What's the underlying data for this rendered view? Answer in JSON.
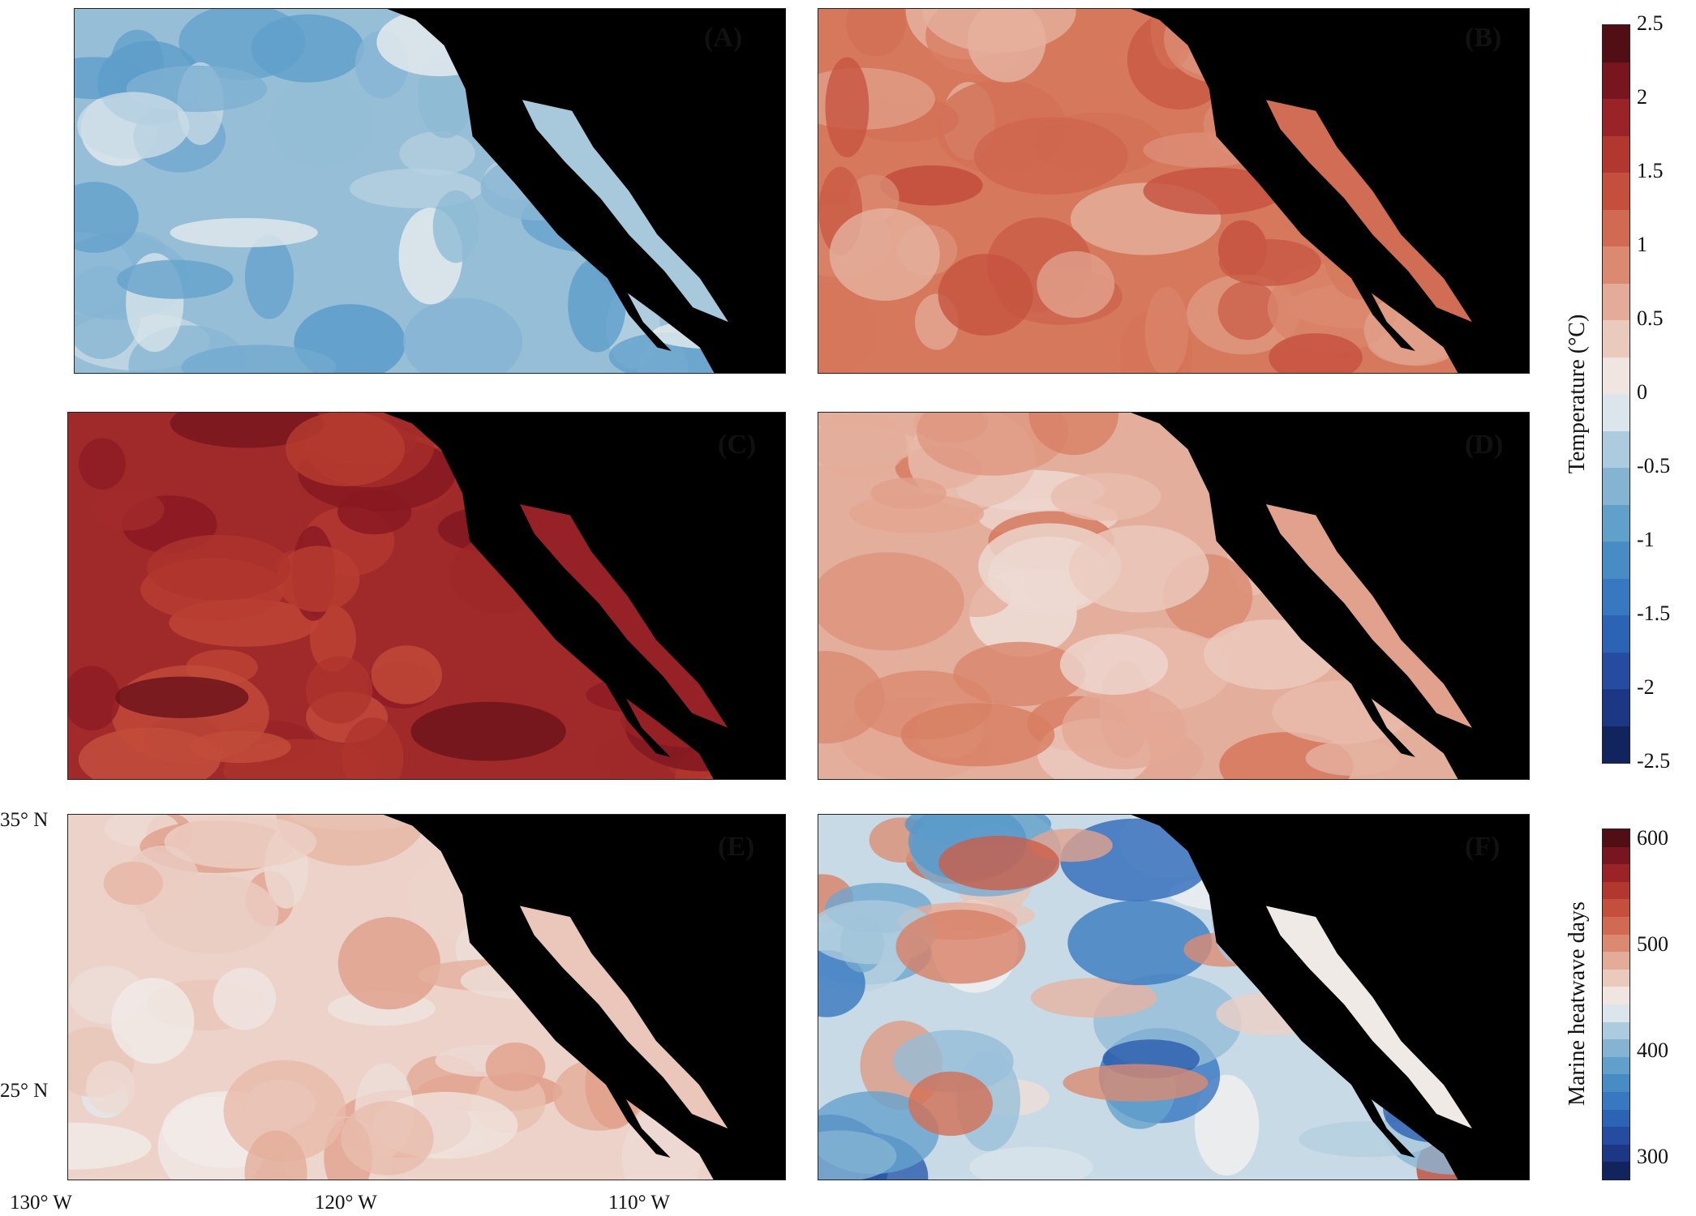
{
  "panels": [
    {
      "label": "(A)",
      "mean_anomaly_c": -0.5
    },
    {
      "label": "(B)",
      "mean_anomaly_c": 1.0
    },
    {
      "label": "(C)",
      "mean_anomaly_c": 1.8
    },
    {
      "label": "(D)",
      "mean_anomaly_c": 0.6
    },
    {
      "label": "(E)",
      "mean_anomaly_c": 0.3
    },
    {
      "label": "(F)",
      "mean_value_days": 430
    }
  ],
  "axes": {
    "lat_labels": [
      "35° N",
      "25° N"
    ],
    "lon_labels": [
      "130° W",
      "120° W",
      "110° W"
    ]
  },
  "colorbar_temperature": {
    "title": "Temperature  (°C)",
    "ticks": [
      "2.5",
      "2",
      "1.5",
      "1",
      "0.5",
      "0",
      "-0.5",
      "-1",
      "-1.5",
      "-2",
      "-2.5"
    ],
    "range": [
      -2.5,
      2.5
    ]
  },
  "colorbar_mhw": {
    "title": "Marine heatwave days",
    "ticks": [
      "600",
      "500",
      "400",
      "300"
    ],
    "range": [
      280,
      610
    ]
  },
  "colors": {
    "land": "#000000",
    "warm_max": "#3d0a0f",
    "cold_max": "#0d1b4a",
    "neutral": "#f2f2f2"
  }
}
